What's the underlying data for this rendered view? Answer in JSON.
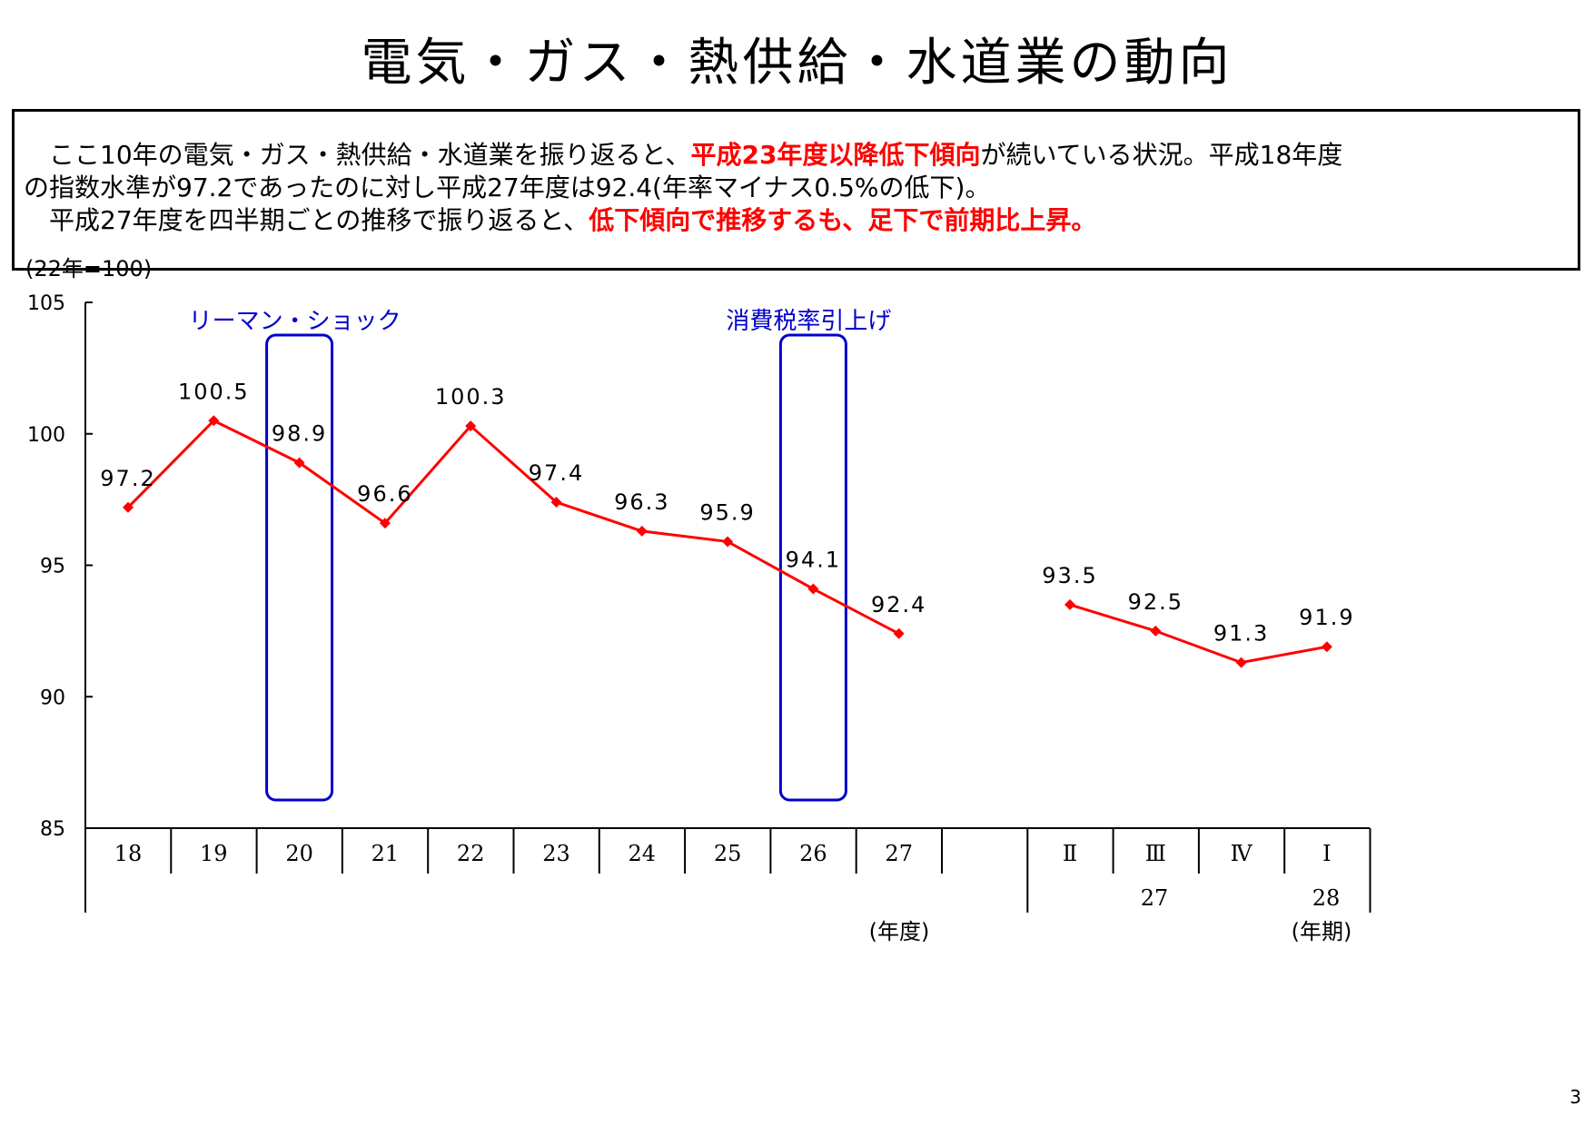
{
  "title": "電気・ガス・熱供給・水道業の動向",
  "summary": {
    "line1_a": "ここ10年の電気・ガス・熱供給・水道業を振り返ると、",
    "line1_hl": "平成23年度以降低下傾向",
    "line1_b": "が続いている状況。平成18年度",
    "line2": "の指数水準が97.2であったのに対し平成27年度は92.4(年率マイナス0.5%の低下)。",
    "line3_a": "平成27年度を四半期ごとの推移で振り返ると、",
    "line3_hl": "低下傾向で推移するも、足下で前期比上昇。"
  },
  "page_number": "3",
  "chart_data": {
    "type": "line",
    "unit_label": "(22年=100)",
    "ylim": [
      85,
      105
    ],
    "y_ticks": [
      85,
      90,
      95,
      100,
      105
    ],
    "grid": false,
    "colors": {
      "series": "#ff0000",
      "event_box": "#0000cc",
      "event_text": "#0000cc"
    },
    "series": [
      {
        "segment": "annual",
        "categories": [
          "18",
          "19",
          "20",
          "21",
          "22",
          "23",
          "24",
          "25",
          "26",
          "27"
        ],
        "values": [
          97.2,
          100.5,
          98.9,
          96.6,
          100.3,
          97.4,
          96.3,
          95.9,
          94.1,
          92.4
        ],
        "labels": [
          "97.2",
          "100.5",
          "98.9",
          "96.6",
          "100.3",
          "97.4",
          "96.3",
          "95.9",
          "94.1",
          "92.4"
        ],
        "axis_unit": "(年度)"
      },
      {
        "segment": "quarterly",
        "categories": [
          "Ⅱ",
          "Ⅲ",
          "Ⅳ",
          "Ⅰ"
        ],
        "years": [
          "27",
          "28"
        ],
        "values": [
          93.5,
          92.5,
          91.3,
          91.9
        ],
        "labels": [
          "93.5",
          "92.5",
          "91.3",
          "91.9"
        ],
        "axis_unit": "(年期)"
      }
    ],
    "annotations": [
      {
        "text": "リーマン・ショック",
        "category": "20"
      },
      {
        "text": "消費税率引上げ",
        "category": "26"
      }
    ]
  }
}
